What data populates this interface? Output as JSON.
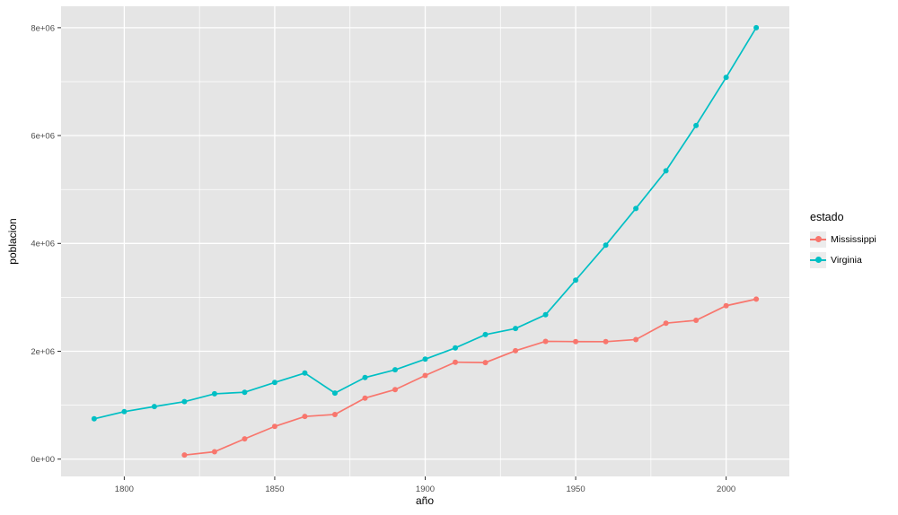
{
  "chart_data": {
    "type": "line",
    "title": "",
    "xlabel": "año",
    "ylabel": "poblacion",
    "legend": {
      "title": "estado",
      "position": "right"
    },
    "grid": true,
    "panel_bg": "#E5E5E5",
    "grid_color": "#FFFFFF",
    "tick_color": "#333333",
    "tick_label_color": "#4D4D4D",
    "x_axis": {
      "range": [
        1779,
        2021
      ],
      "ticks": [
        {
          "value": 1800,
          "label": "1800"
        },
        {
          "value": 1850,
          "label": "1850"
        },
        {
          "value": 1900,
          "label": "1900"
        },
        {
          "value": 1950,
          "label": "1950"
        },
        {
          "value": 2000,
          "label": "2000"
        }
      ],
      "minor": [
        1825,
        1875,
        1925,
        1975
      ]
    },
    "y_axis": {
      "range": [
        -320831,
        8397303
      ],
      "ticks": [
        {
          "value": 0,
          "label": "0e+00"
        },
        {
          "value": 2000000,
          "label": "2e+06"
        },
        {
          "value": 4000000,
          "label": "4e+06"
        },
        {
          "value": 6000000,
          "label": "6e+06"
        },
        {
          "value": 8000000,
          "label": "8e+06"
        }
      ],
      "minor": [
        1000000,
        3000000,
        5000000,
        7000000
      ]
    },
    "series": [
      {
        "name": "Mississippi",
        "color": "#F8766D",
        "x": [
          1820,
          1830,
          1840,
          1850,
          1860,
          1870,
          1880,
          1890,
          1900,
          1910,
          1920,
          1930,
          1940,
          1950,
          1960,
          1970,
          1980,
          1990,
          2000,
          2010
        ],
        "y": [
          75448,
          136621,
          375651,
          606526,
          791305,
          827922,
          1131597,
          1289600,
          1551270,
          1797114,
          1790618,
          2009821,
          2183796,
          2178914,
          2178141,
          2216912,
          2520638,
          2573216,
          2844658,
          2967297
        ]
      },
      {
        "name": "Virginia",
        "color": "#00BFC4",
        "x": [
          1790,
          1800,
          1810,
          1820,
          1830,
          1840,
          1850,
          1860,
          1870,
          1880,
          1890,
          1900,
          1910,
          1920,
          1930,
          1940,
          1950,
          1960,
          1970,
          1980,
          1990,
          2000,
          2010
        ],
        "y": [
          747610,
          880200,
          974600,
          1065366,
          1211405,
          1239797,
          1421661,
          1596318,
          1225163,
          1512565,
          1655980,
          1854184,
          2061612,
          2309187,
          2421851,
          2677773,
          3318680,
          3966949,
          4648494,
          5346818,
          6187358,
          7078515,
          8001024
        ]
      }
    ]
  }
}
